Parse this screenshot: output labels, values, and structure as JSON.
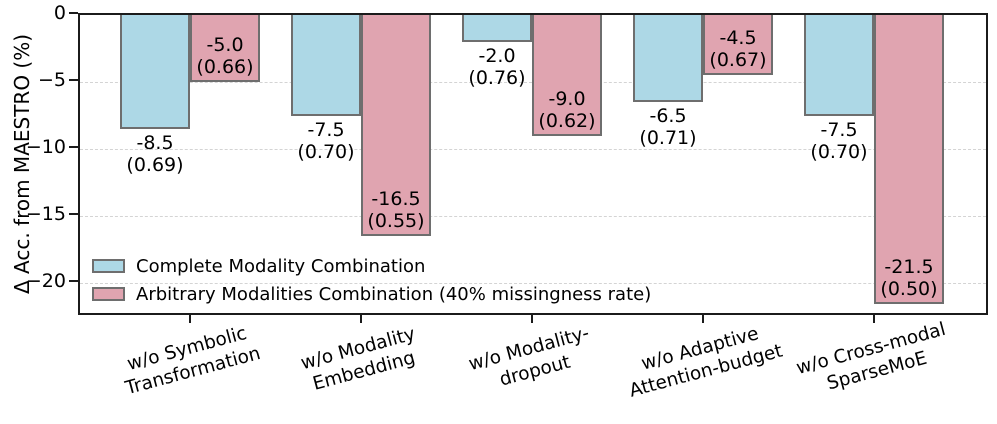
{
  "chart_data": {
    "type": "bar",
    "title": "",
    "xlabel": "",
    "ylabel": "Δ Acc. from MAESTRO (%)",
    "ylim": [
      -22.5,
      0
    ],
    "grid": "horizontal dashed",
    "legend_position": "lower left",
    "yticks": [
      {
        "label": "0",
        "value": 0
      },
      {
        "label": "−5",
        "value": -5
      },
      {
        "label": "−10",
        "value": -10
      },
      {
        "label": "−15",
        "value": -15
      },
      {
        "label": "−20",
        "value": -20
      }
    ],
    "categories": [
      "w/o Symbolic Transformation",
      "w/o Modality Embedding",
      "w/o Modality-dropout",
      "w/o Adaptive Attention-budget",
      "w/o Cross-modal SparseMoE"
    ],
    "categories_lines": [
      [
        "w/o Symbolic",
        "Transformation"
      ],
      [
        "w/o Modality",
        "Embedding"
      ],
      [
        "w/o Modality-",
        "dropout"
      ],
      [
        "w/o Adaptive",
        "Attention-budget"
      ],
      [
        "w/o Cross-modal",
        "SparseMoE"
      ]
    ],
    "series": [
      {
        "key": "complete",
        "name": "Complete Modality Combination",
        "color": "#ADD8E6",
        "edge_color": "#6e6e6e",
        "values": [
          -8.5,
          -7.5,
          -2.0,
          -6.5,
          -7.5
        ],
        "value_labels": [
          "-8.5",
          "-7.5",
          "-2.0",
          "-6.5",
          "-7.5"
        ],
        "score_labels": [
          "(0.69)",
          "(0.70)",
          "(0.76)",
          "(0.71)",
          "(0.70)"
        ],
        "label_placement": "below-bar"
      },
      {
        "key": "arbitrary",
        "name": "Arbitrary Modalities Combination (40% missingness rate)",
        "color": "#E0A4B0",
        "edge_color": "#6e6e6e",
        "values": [
          -5.0,
          -16.5,
          -9.0,
          -4.5,
          -21.5
        ],
        "value_labels": [
          "-5.0",
          "-16.5",
          "-9.0",
          "-4.5",
          "-21.5"
        ],
        "score_labels": [
          "(0.66)",
          "(0.55)",
          "(0.62)",
          "(0.67)",
          "(0.50)"
        ],
        "label_placement": "inside-bar-bottom"
      }
    ]
  }
}
